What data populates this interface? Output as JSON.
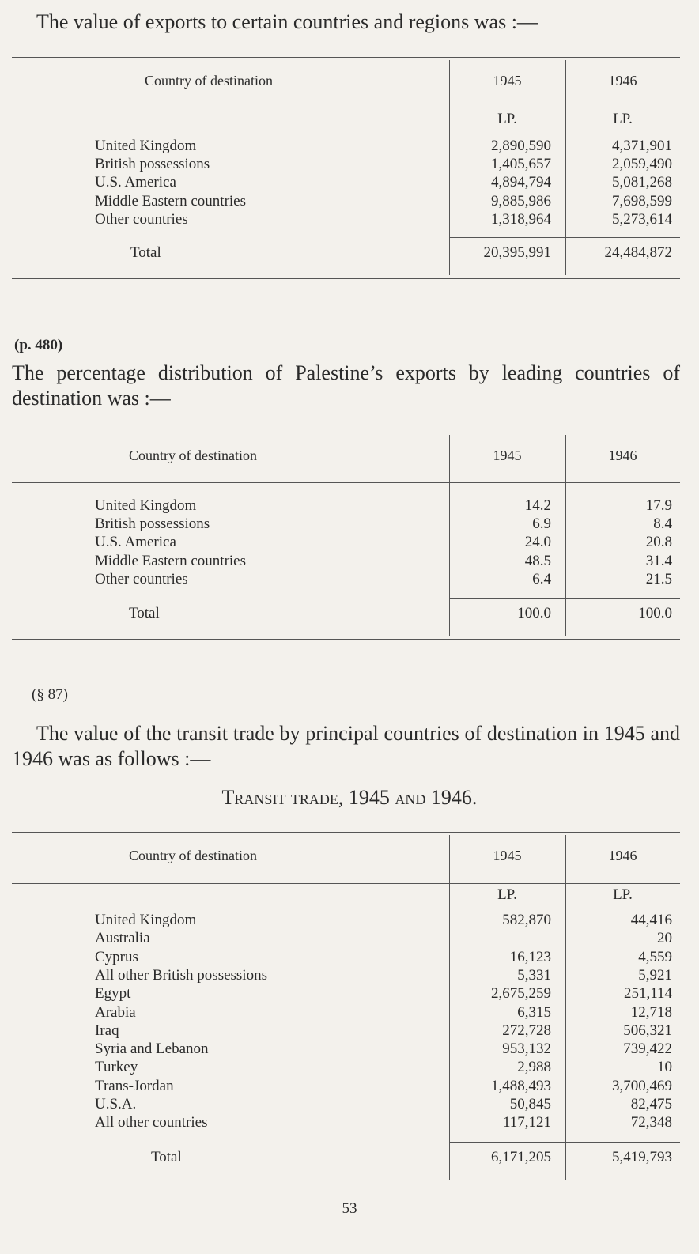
{
  "intro1": "The value of exports to certain countries and regions was :—",
  "table1": {
    "headers": [
      "Country of destination",
      "1945",
      "1946"
    ],
    "units": [
      "LP.",
      "LP."
    ],
    "rows": [
      [
        "United Kingdom",
        "2,890,590",
        "4,371,901"
      ],
      [
        "British possessions",
        "1,405,657",
        "2,059,490"
      ],
      [
        "U.S. America",
        "4,894,794",
        "5,081,268"
      ],
      [
        "Middle Eastern countries",
        "9,885,986",
        "7,698,599"
      ],
      [
        "Other countries",
        "1,318,964",
        "5,273,614"
      ]
    ],
    "total": [
      "Total",
      "20,395,991",
      "24,484,872"
    ]
  },
  "ref2": "(p. 480)",
  "intro2": "The percentage distribution of Palestine’s exports by leading countries of destination was :—",
  "table2": {
    "headers": [
      "Country of destination",
      "1945",
      "1946"
    ],
    "rows": [
      [
        "United Kingdom",
        "14.2",
        "17.9"
      ],
      [
        "British possessions",
        "6.9",
        "8.4"
      ],
      [
        "U.S. America",
        "24.0",
        "20.8"
      ],
      [
        "Middle Eastern countries",
        "48.5",
        "31.4"
      ],
      [
        "Other countries",
        "6.4",
        "21.5"
      ]
    ],
    "total": [
      "Total",
      "100.0",
      "100.0"
    ]
  },
  "ref3": "(§ 87)",
  "intro3": "The value of the transit trade by principal countries of destination in 1945 and 1946 was as follows :—",
  "title3": "Transit trade, 1945 and 1946.",
  "table3": {
    "headers": [
      "Country of destination",
      "1945",
      "1946"
    ],
    "units": [
      "LP.",
      "LP."
    ],
    "rows": [
      [
        "United Kingdom",
        "582,870",
        "44,416"
      ],
      [
        "Australia",
        "—",
        "20"
      ],
      [
        "Cyprus",
        "16,123",
        "4,559"
      ],
      [
        "All other British possessions",
        "5,331",
        "5,921"
      ],
      [
        "Egypt",
        "2,675,259",
        "251,114"
      ],
      [
        "Arabia",
        "6,315",
        "12,718"
      ],
      [
        "Iraq",
        "272,728",
        "506,321"
      ],
      [
        "Syria and Lebanon",
        "953,132",
        "739,422"
      ],
      [
        "Turkey",
        "2,988",
        "10"
      ],
      [
        "Trans-Jordan",
        "1,488,493",
        "3,700,469"
      ],
      [
        "U.S.A.",
        "50,845",
        "82,475"
      ],
      [
        "All other countries",
        "117,121",
        "72,348"
      ]
    ],
    "total": [
      "Total",
      "6,171,205",
      "5,419,793"
    ]
  },
  "page_number": "53"
}
